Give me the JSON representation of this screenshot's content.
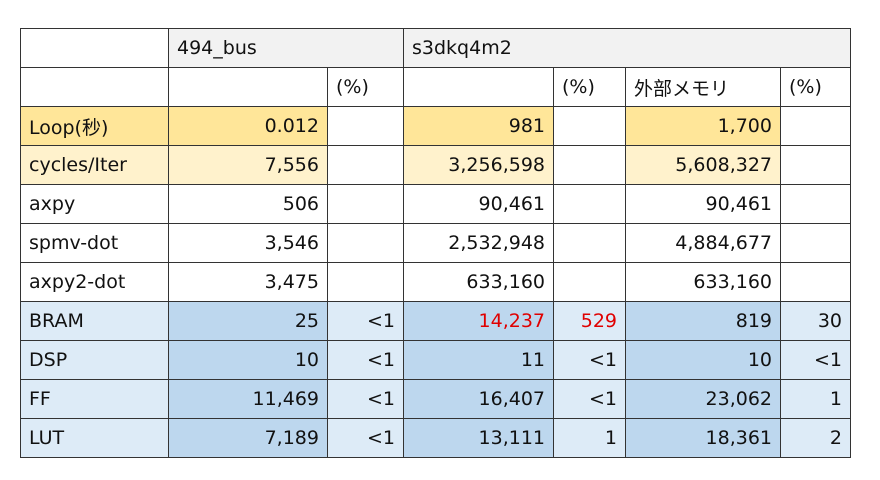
{
  "table": {
    "header": [
      "494_bus",
      "s3dkq4m2"
    ],
    "subheader": [
      null,
      "(%)",
      null,
      "(%)",
      "外部メモリ",
      "(%)"
    ],
    "rows": [
      {
        "label": "Loop(秒)",
        "cells": [
          "0.012",
          null,
          "981",
          null,
          "1,700",
          null
        ]
      },
      {
        "label": "cycles/Iter",
        "cells": [
          "7,556",
          null,
          "3,256,598",
          null,
          "5,608,327",
          null
        ]
      },
      {
        "label": "axpy",
        "cells": [
          "506",
          null,
          "90,461",
          null,
          "90,461",
          null
        ]
      },
      {
        "label": "spmv-dot",
        "cells": [
          "3,546",
          null,
          "2,532,948",
          null,
          "4,884,677",
          null
        ]
      },
      {
        "label": "axpy2-dot",
        "cells": [
          "3,475",
          null,
          "633,160",
          null,
          "633,160",
          null
        ]
      },
      {
        "label": "BRAM",
        "cells": [
          "25",
          "<1",
          "14,237",
          "529",
          "819",
          "30"
        ]
      },
      {
        "label": "DSP",
        "cells": [
          "10",
          "<1",
          "11",
          "<1",
          "10",
          "<1"
        ]
      },
      {
        "label": "FF",
        "cells": [
          "11,469",
          "<1",
          "16,407",
          "<1",
          "23,062",
          "1"
        ]
      },
      {
        "label": "LUT",
        "cells": [
          "7,189",
          "<1",
          "13,111",
          "1",
          "18,361",
          "2"
        ]
      }
    ]
  }
}
